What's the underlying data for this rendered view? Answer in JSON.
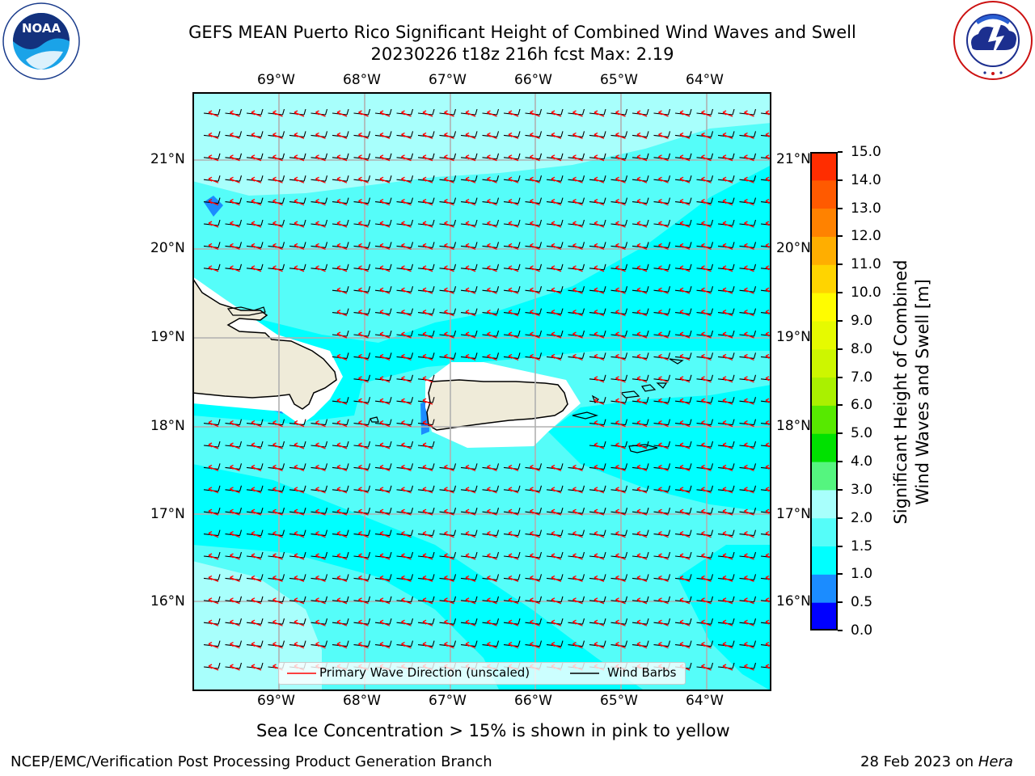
{
  "title": {
    "line1": "GEFS MEAN Puerto Rico Significant Height of Combined Wind Waves and Swell",
    "line2": "20230226 t18z 216h fcst   Max: 2.19"
  },
  "logos": {
    "noaa_text": "NOAA",
    "noaa_ring": "NATIONAL OCEANIC AND ATMOSPHERIC ADMINISTRATION · U.S. DEPARTMENT OF COMMERCE",
    "nws_ring": "NATIONAL WEATHER SERVICE"
  },
  "map": {
    "lon_labels": [
      "69°W",
      "68°W",
      "67°W",
      "66°W",
      "65°W",
      "64°W"
    ],
    "lat_labels": [
      "21°N",
      "20°N",
      "19°N",
      "18°N",
      "17°N",
      "16°N"
    ],
    "colors": {
      "land": "#efebd9",
      "sea_low": "#00ffff",
      "sea_mid": "#55fdf9",
      "sea_high": "#a8fffc",
      "sea_shallow": "#1b8cff",
      "wave_arrow": "#ff0000",
      "wind_barb": "#000000",
      "grid": "#b0b0b0"
    },
    "legend": {
      "wave_label": "Primary Wave Direction (unscaled)",
      "barb_label": "Wind Barbs"
    }
  },
  "colorbar": {
    "label_line1": "Significant Height of Combined",
    "label_line2": "Wind Waves and Swell [m]",
    "ticks": [
      "15.0",
      "14.0",
      "13.0",
      "12.0",
      "11.0",
      "10.0",
      "9.0",
      "8.0",
      "7.0",
      "6.0",
      "5.0",
      "4.0",
      "3.0",
      "2.0",
      "1.5",
      "1.0",
      "0.5",
      "0.0"
    ],
    "band_colors": [
      "#0000ff",
      "#1b8cff",
      "#00ffff",
      "#55fdf9",
      "#a8fffc",
      "#55f57f",
      "#00e100",
      "#57e900",
      "#aaf000",
      "#cdf600",
      "#e6fa00",
      "#fffc00",
      "#ffd400",
      "#ffae00",
      "#ff8200",
      "#ff5a00",
      "#ff2d00"
    ]
  },
  "notes": {
    "sea_ice": "Sea Ice Concentration > 15% is shown in pink to yellow",
    "credit": "NCEP/EMC/Verification Post Processing Product Generation Branch",
    "date": "28 Feb 2023 on ",
    "machine": "Hera"
  }
}
